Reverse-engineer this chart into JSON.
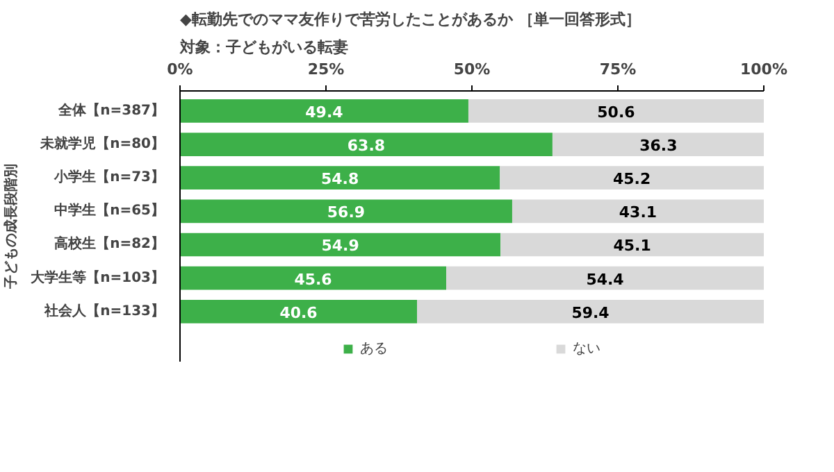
{
  "chart_data": {
    "type": "bar",
    "orientation": "horizontal",
    "stacked": true,
    "data_labels": true,
    "legend": "bottom",
    "title": "◆転勤先でのママ友作りで苦労したことがあるか ［単一回答形式］",
    "subtitle": "対象：子どもがいる転妻",
    "ylabel": "子どもの成長段階別",
    "categories": [
      "全体【n=387】",
      "未就学児【n=80】",
      "小学生【n=73】",
      "中学生【n=65】",
      "高校生【n=82】",
      "大学生等【n=103】",
      "社会人【n=133】"
    ],
    "xlim": [
      0,
      100
    ],
    "xticks": [
      {
        "value": 0,
        "label": "0%"
      },
      {
        "value": 25,
        "label": "25%"
      },
      {
        "value": 50,
        "label": "50%"
      },
      {
        "value": 75,
        "label": "75%"
      },
      {
        "value": 100,
        "label": "100%"
      }
    ],
    "series": [
      {
        "name": "ある",
        "color": "#3db049",
        "values": [
          49.4,
          63.8,
          54.8,
          56.9,
          54.9,
          45.6,
          40.6
        ]
      },
      {
        "name": "ない",
        "color": "#d9d9d9",
        "values": [
          50.6,
          36.3,
          45.2,
          43.1,
          45.1,
          54.4,
          59.4
        ]
      }
    ]
  }
}
